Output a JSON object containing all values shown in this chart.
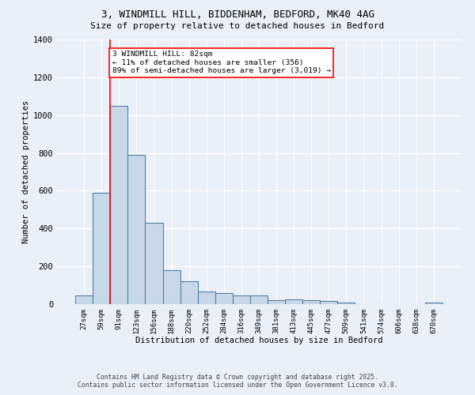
{
  "title_line1": "3, WINDMILL HILL, BIDDENHAM, BEDFORD, MK40 4AG",
  "title_line2": "Size of property relative to detached houses in Bedford",
  "xlabel": "Distribution of detached houses by size in Bedford",
  "ylabel": "Number of detached properties",
  "categories": [
    "27sqm",
    "59sqm",
    "91sqm",
    "123sqm",
    "156sqm",
    "188sqm",
    "220sqm",
    "252sqm",
    "284sqm",
    "316sqm",
    "349sqm",
    "381sqm",
    "413sqm",
    "445sqm",
    "477sqm",
    "509sqm",
    "541sqm",
    "574sqm",
    "606sqm",
    "638sqm",
    "670sqm"
  ],
  "values": [
    45,
    590,
    1050,
    790,
    430,
    180,
    120,
    65,
    60,
    45,
    45,
    20,
    25,
    20,
    15,
    10,
    0,
    0,
    0,
    0,
    10
  ],
  "bar_color": "#c8d8e8",
  "bar_edge_color": "#5580a0",
  "red_line_x": 1.5,
  "annotation_title": "3 WINDMILL HILL: 82sqm",
  "annotation_line2": "← 11% of detached houses are smaller (356)",
  "annotation_line3": "89% of semi-detached houses are larger (3,019) →",
  "background_color": "#eaf0f8",
  "grid_color": "#ffffff",
  "footer_line1": "Contains HM Land Registry data © Crown copyright and database right 2025.",
  "footer_line2": "Contains public sector information licensed under the Open Government Licence v3.0.",
  "ylim": [
    0,
    1400
  ],
  "yticks": [
    0,
    200,
    400,
    600,
    800,
    1000,
    1200,
    1400
  ]
}
